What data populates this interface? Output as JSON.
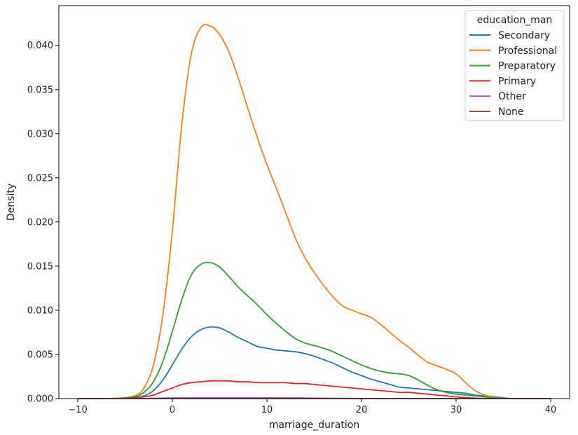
{
  "chart_data": {
    "type": "line",
    "xlabel": "marriage_duration",
    "ylabel": "Density",
    "xlim": [
      -12,
      42
    ],
    "ylim": [
      0,
      0.0445
    ],
    "xticks": [
      -10,
      0,
      10,
      20,
      30,
      40
    ],
    "xtick_labels": [
      "−10",
      "0",
      "10",
      "20",
      "30",
      "40"
    ],
    "yticks": [
      0,
      0.005,
      0.01,
      0.015,
      0.02,
      0.025,
      0.03,
      0.035,
      0.04
    ],
    "ytick_labels": [
      "0.000",
      "0.005",
      "0.010",
      "0.015",
      "0.020",
      "0.025",
      "0.030",
      "0.035",
      "0.040"
    ],
    "grid": false,
    "legend": {
      "title": "education_man",
      "placement": "top-right"
    },
    "series": [
      {
        "name": "Secondary",
        "color": "#1f77b4",
        "x": [
          -10,
          -6,
          -4,
          -3,
          -2,
          -1,
          0,
          1,
          2,
          3,
          4,
          5,
          6,
          7,
          8,
          9,
          10,
          11,
          12,
          13,
          14,
          15,
          16,
          17,
          18,
          19,
          20,
          21,
          22,
          23,
          24,
          25,
          26,
          27,
          28,
          29,
          30,
          31,
          32,
          33,
          34,
          35,
          36,
          40
        ],
        "y": [
          0,
          2e-05,
          0.0001,
          0.0003,
          0.0009,
          0.0021,
          0.0038,
          0.0056,
          0.007,
          0.0078,
          0.0081,
          0.008,
          0.0075,
          0.0069,
          0.0064,
          0.0059,
          0.0057,
          0.0055,
          0.0054,
          0.0053,
          0.0051,
          0.0048,
          0.0044,
          0.004,
          0.0035,
          0.003,
          0.0026,
          0.0022,
          0.0019,
          0.0016,
          0.0013,
          0.0012,
          0.0011,
          0.001,
          0.0009,
          0.0008,
          0.0007,
          0.0006,
          0.0004,
          0.0003,
          0.0002,
          0.0001,
          0,
          0
        ]
      },
      {
        "name": "Professional",
        "color": "#ff7f0e",
        "x": [
          -10,
          -6,
          -4,
          -3,
          -2,
          -1,
          0,
          1,
          2,
          3,
          4,
          5,
          6,
          7,
          8,
          9,
          10,
          11,
          12,
          13,
          14,
          15,
          16,
          17,
          18,
          19,
          20,
          21,
          22,
          23,
          24,
          25,
          26,
          27,
          28,
          29,
          30,
          31,
          32,
          33,
          34,
          35,
          36,
          40
        ],
        "y": [
          0,
          3e-05,
          0.0003,
          0.0012,
          0.0038,
          0.0095,
          0.019,
          0.031,
          0.039,
          0.042,
          0.0422,
          0.0412,
          0.0392,
          0.0362,
          0.0328,
          0.0295,
          0.0265,
          0.0238,
          0.021,
          0.0182,
          0.016,
          0.0143,
          0.0128,
          0.0115,
          0.0105,
          0.01,
          0.0096,
          0.0092,
          0.0084,
          0.0075,
          0.0066,
          0.0058,
          0.0049,
          0.0041,
          0.0037,
          0.0033,
          0.0028,
          0.0018,
          0.0009,
          0.0004,
          0.00015,
          5e-05,
          1e-05,
          0
        ]
      },
      {
        "name": "Preparatory",
        "color": "#2ca02c",
        "x": [
          -10,
          -6,
          -4,
          -3,
          -2,
          -1,
          0,
          1,
          2,
          3,
          4,
          5,
          6,
          7,
          8,
          9,
          10,
          11,
          12,
          13,
          14,
          15,
          16,
          17,
          18,
          19,
          20,
          21,
          22,
          23,
          24,
          25,
          26,
          27,
          28,
          29,
          30,
          31,
          32,
          33,
          34,
          35,
          36,
          40
        ],
        "y": [
          0,
          2e-05,
          0.0002,
          0.0007,
          0.0019,
          0.0042,
          0.0076,
          0.0112,
          0.014,
          0.0152,
          0.0154,
          0.0149,
          0.0138,
          0.0126,
          0.0116,
          0.0106,
          0.0095,
          0.0085,
          0.0076,
          0.0068,
          0.0063,
          0.006,
          0.0057,
          0.0053,
          0.0048,
          0.0043,
          0.0038,
          0.0034,
          0.0031,
          0.0029,
          0.0028,
          0.0026,
          0.0021,
          0.0015,
          0.001,
          0.0007,
          0.0005,
          0.0004,
          0.0003,
          0.0002,
          0.0001,
          4e-05,
          1e-05,
          0
        ]
      },
      {
        "name": "Primary",
        "color": "#d62728",
        "x": [
          -10,
          -6,
          -4,
          -3,
          -2,
          -1,
          0,
          1,
          2,
          3,
          4,
          5,
          6,
          7,
          8,
          9,
          10,
          11,
          12,
          13,
          14,
          15,
          16,
          17,
          18,
          19,
          20,
          21,
          22,
          23,
          24,
          25,
          26,
          27,
          28,
          29,
          30,
          31,
          32,
          33,
          34,
          35,
          36,
          40
        ],
        "y": [
          0,
          1e-05,
          8e-05,
          0.0002,
          0.0004,
          0.0008,
          0.0012,
          0.0016,
          0.0018,
          0.0019,
          0.002,
          0.002,
          0.002,
          0.0019,
          0.0019,
          0.0018,
          0.0018,
          0.0018,
          0.0018,
          0.0017,
          0.0017,
          0.0016,
          0.0015,
          0.0014,
          0.0013,
          0.0012,
          0.0011,
          0.001,
          0.0009,
          0.0008,
          0.0007,
          0.0007,
          0.0006,
          0.0005,
          0.0004,
          0.0003,
          0.0002,
          0.0001,
          5e-05,
          2e-05,
          1e-05,
          0,
          0,
          0
        ]
      },
      {
        "name": "Other",
        "color": "#9467bd",
        "x": [
          -10,
          -4,
          -2,
          0,
          2,
          4,
          6,
          8,
          10,
          12,
          14,
          16,
          18,
          20,
          22,
          40
        ],
        "y": [
          0,
          1e-05,
          4e-05,
          8e-05,
          0.0001,
          0.00011,
          0.00011,
          0.0001,
          0.0001,
          9e-05,
          7e-05,
          5e-05,
          3e-05,
          2e-05,
          1e-05,
          0
        ]
      },
      {
        "name": "None",
        "color": "#8c564b",
        "x": [
          -10,
          0,
          10,
          20,
          30,
          40
        ],
        "y": [
          0,
          0,
          0,
          0,
          0,
          0
        ]
      }
    ]
  }
}
